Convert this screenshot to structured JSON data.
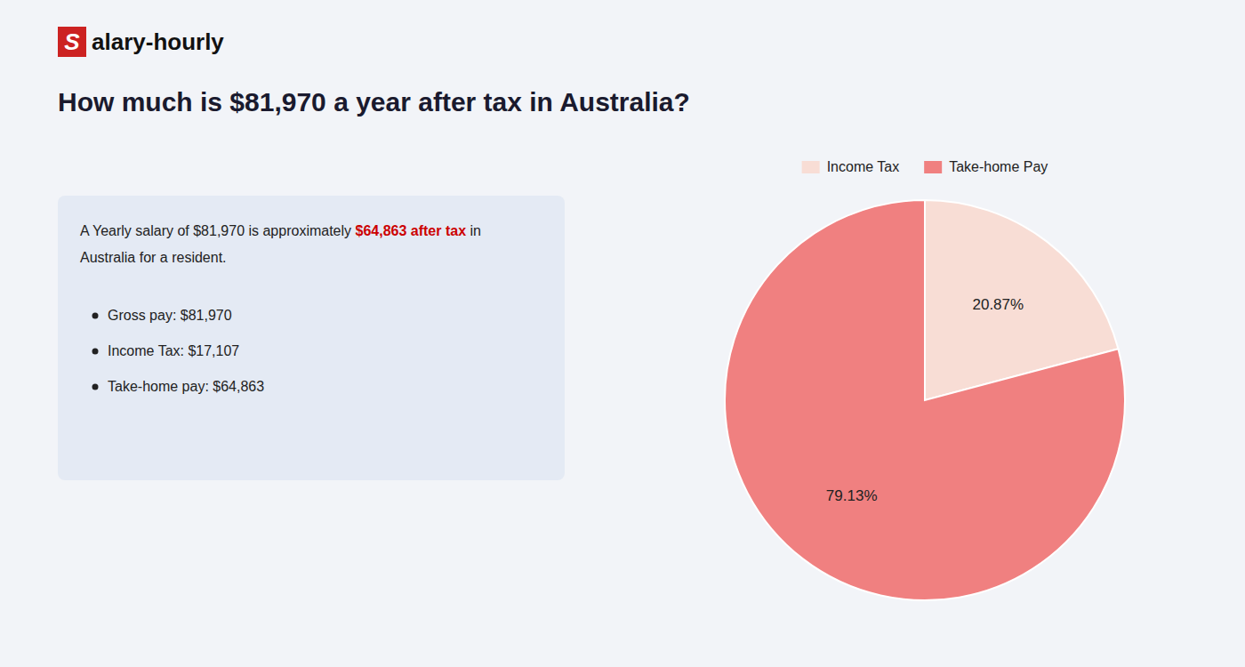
{
  "chart_data": {
    "type": "pie",
    "title": "How much is $81,970 a year after tax in Australia?",
    "logo": {
      "text": [
        "S",
        "alary-hourly"
      ],
      "color": "#cc2222"
    },
    "annotations": [
      [
        {
          "text": "A Yearly salary of $81,970 is approximately "
        },
        {
          "text": "$64,863 after tax",
          "color": "#cc0000"
        },
        {
          "text": " in"
        }
      ],
      [
        {
          "text": "Australia for a resident."
        }
      ]
    ],
    "bullets": [
      "Gross pay: $81,970",
      "Income Tax: $17,107",
      "Take-home pay: $64,863"
    ],
    "categories": [
      "Income Tax",
      "Take-home Pay"
    ],
    "values": [
      20.87,
      79.13
    ],
    "value_labels": [
      "20.87%",
      "79.13%"
    ],
    "colors": [
      "#f8ddd5",
      "#f08080"
    ],
    "data_labels": true,
    "legend": "top"
  }
}
